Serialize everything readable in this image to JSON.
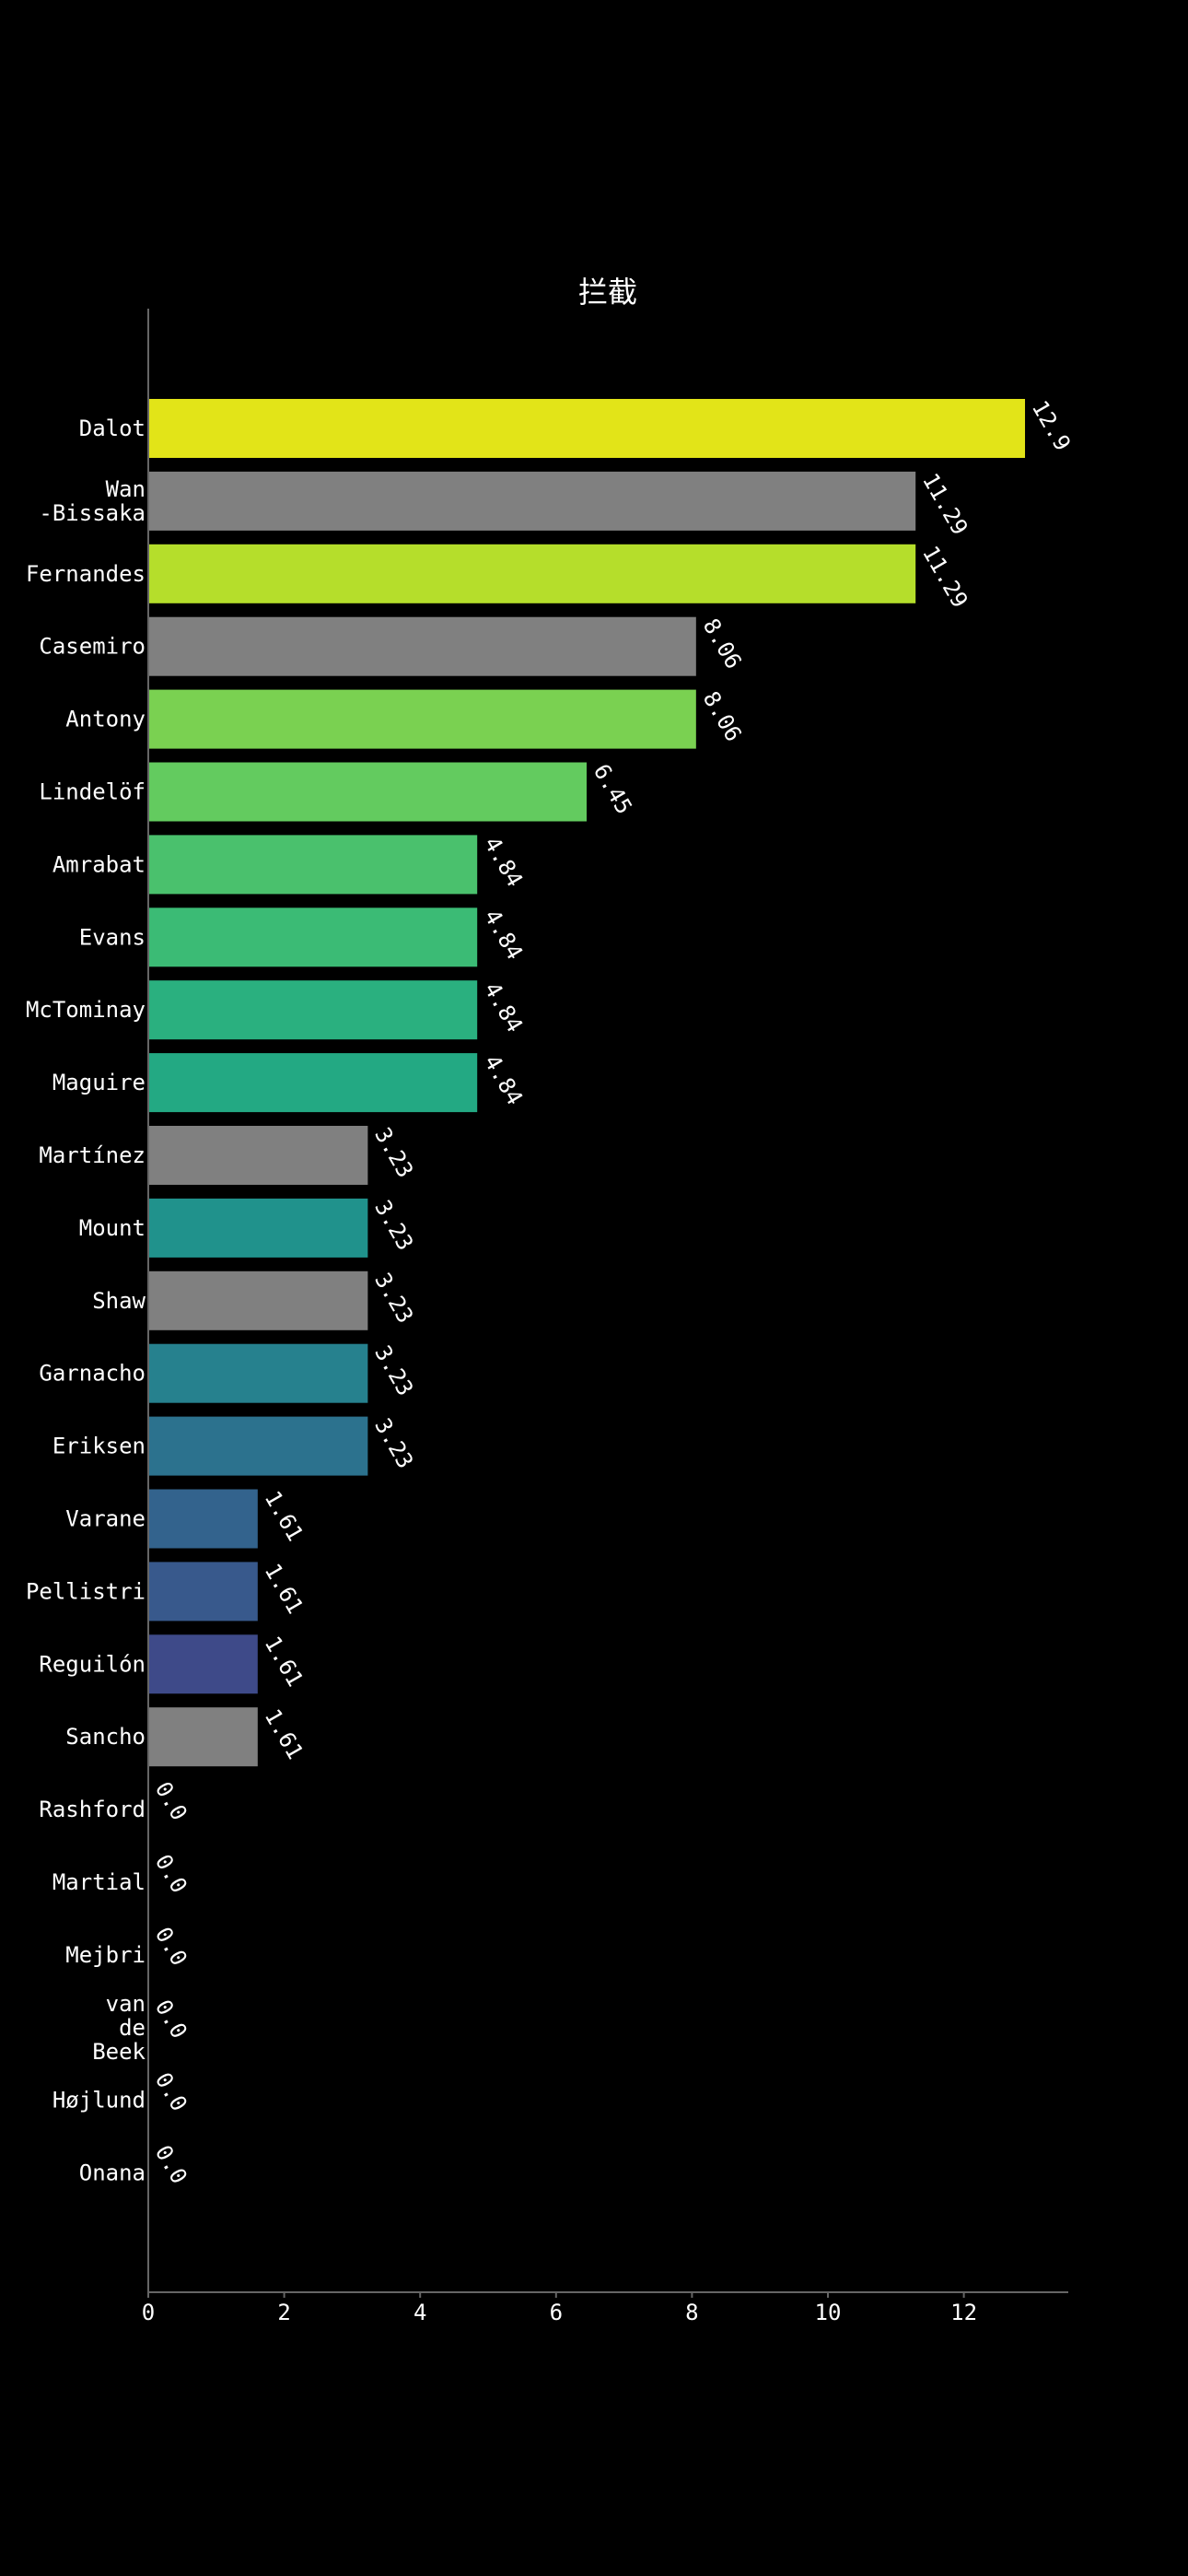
{
  "chart_data": {
    "type": "bar",
    "orientation": "horizontal",
    "title": "拦截",
    "xlabel": "",
    "ylabel": "",
    "xlim": [
      0,
      13.5
    ],
    "xticks": [
      0,
      2,
      4,
      6,
      8,
      10,
      12
    ],
    "grid": false,
    "legend": "none",
    "categories": [
      "Dalot",
      "Wan\n-Bissaka",
      "Fernandes",
      "Casemiro",
      "Antony",
      "Lindelöf",
      "Amrabat",
      "Evans",
      "McTominay",
      "Maguire",
      "Martínez",
      "Mount",
      "Shaw",
      "Garnacho",
      "Eriksen",
      "Varane",
      "Pellistri",
      "Reguilón",
      "Sancho",
      "Rashford",
      "Martial",
      "Mejbri",
      "van\nde\nBeek",
      "Højlund",
      "Onana"
    ],
    "values": [
      12.9,
      11.29,
      11.29,
      8.06,
      8.06,
      6.45,
      4.84,
      4.84,
      4.84,
      4.84,
      3.23,
      3.23,
      3.23,
      3.23,
      3.23,
      1.61,
      1.61,
      1.61,
      1.61,
      0.0,
      0.0,
      0.0,
      0.0,
      0.0,
      0.0
    ],
    "value_labels": [
      "12.9",
      "11.29",
      "11.29",
      "8.06",
      "8.06",
      "6.45",
      "4.84",
      "4.84",
      "4.84",
      "4.84",
      "3.23",
      "3.23",
      "3.23",
      "3.23",
      "3.23",
      "1.61",
      "1.61",
      "1.61",
      "1.61",
      "0.0",
      "0.0",
      "0.0",
      "0.0",
      "0.0",
      "0.0"
    ],
    "colors": [
      "#e2e418",
      "#808080",
      "#b5de2b",
      "#808080",
      "#7ad151",
      "#63cb5f",
      "#4ac16d",
      "#3bbb75",
      "#2ab07f",
      "#23a983",
      "#808080",
      "#20928c",
      "#808080",
      "#26818e",
      "#2c728e",
      "#33638d",
      "#38598c",
      "#3e4a89",
      "#808080",
      "#444444",
      "#444444",
      "#444444",
      "#444444",
      "#444444",
      "#444444"
    ]
  },
  "style": {
    "background": "#000000",
    "text_color": "#ffffff",
    "axis_color": "#666666"
  }
}
